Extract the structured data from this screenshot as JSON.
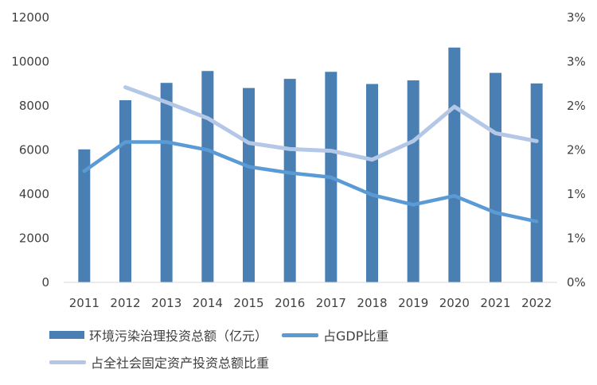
{
  "chart_data": {
    "type": "bar",
    "categories": [
      "2011",
      "2012",
      "2013",
      "2014",
      "2015",
      "2016",
      "2017",
      "2018",
      "2019",
      "2020",
      "2021",
      "2022"
    ],
    "series": [
      {
        "name": "环境污染治理投资总额（亿元）",
        "type": "bar",
        "axis": "left",
        "color": "#4a7fb4",
        "values": [
          6026,
          8253,
          9038,
          9576,
          8806,
          9220,
          9539,
          8988,
          9152,
          10639,
          9492,
          9013
        ]
      },
      {
        "name": "占GDP比重",
        "type": "line",
        "axis": "right",
        "color": "#5b9bd5",
        "values": [
          1.26,
          1.59,
          1.59,
          1.5,
          1.31,
          1.24,
          1.19,
          0.99,
          0.88,
          0.98,
          0.79,
          0.69
        ]
      },
      {
        "name": "占全社会固定资产投资总额比重",
        "type": "line",
        "axis": "right",
        "color": "#b4c7e7",
        "values": [
          null,
          2.21,
          2.04,
          1.86,
          1.58,
          1.51,
          1.49,
          1.39,
          1.6,
          1.99,
          1.69,
          1.6
        ]
      }
    ],
    "y_left": {
      "ylim": [
        0,
        12000
      ],
      "ticks": [
        "0",
        "2000",
        "4000",
        "6000",
        "8000",
        "10000",
        "12000"
      ]
    },
    "y_right": {
      "ylim": [
        0,
        3
      ],
      "ticks": [
        "0%",
        "1%",
        "1%",
        "2%",
        "2%",
        "3%",
        "3%"
      ]
    },
    "grid": false,
    "legend_position": "bottom"
  },
  "legend": {
    "bar_label": "环境污染治理投资总额（亿元）",
    "gdp_label": "占GDP比重",
    "fai_label": "占全社会固定资产投资总额比重",
    "bar_color": "#4a7fb4",
    "gdp_color": "#5b9bd5",
    "fai_color": "#b4c7e7"
  }
}
